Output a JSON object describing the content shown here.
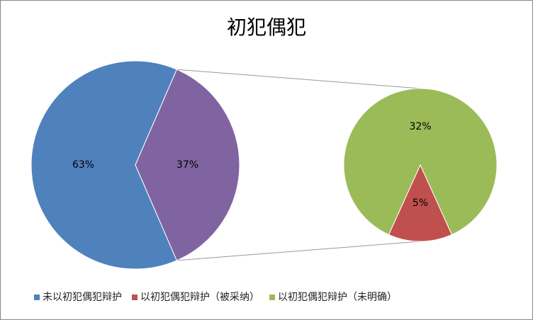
{
  "chart_data": {
    "type": "pie-of-pie",
    "title": "初犯偶犯",
    "categories": [
      "未以初犯偶犯辩护",
      "以初犯偶犯辩护（被采纳）",
      "以初犯偶犯辩护（未明确）"
    ],
    "values": [
      63,
      5,
      32
    ],
    "value_labels": [
      "63%",
      "5%",
      "32%"
    ],
    "colors": [
      "#4f81bd",
      "#c0504d",
      "#9bbb59"
    ],
    "other": {
      "value": 37,
      "label": "37%",
      "color": "#8064a2"
    },
    "second_plot_size": 2,
    "legend": "bottom"
  }
}
